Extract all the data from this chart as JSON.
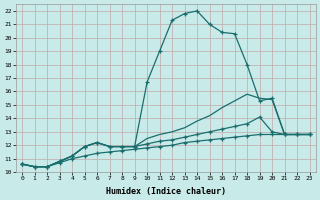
{
  "xlabel": "Humidex (Indice chaleur)",
  "bg_color": "#c8eae8",
  "grid_color": "#c0aaaa",
  "line_color": "#1a6e6e",
  "xlim": [
    -0.5,
    23.5
  ],
  "ylim": [
    10.0,
    22.5
  ],
  "yticks": [
    10,
    11,
    12,
    13,
    14,
    15,
    16,
    17,
    18,
    19,
    20,
    21,
    22
  ],
  "xticks": [
    0,
    1,
    2,
    3,
    4,
    5,
    6,
    7,
    8,
    9,
    10,
    11,
    12,
    13,
    14,
    15,
    16,
    17,
    18,
    19,
    20,
    21,
    22,
    23
  ],
  "series": [
    {
      "x": [
        0,
        1,
        2,
        3,
        4,
        5,
        6,
        7,
        8,
        9,
        10,
        11,
        12,
        13,
        14,
        15,
        16,
        17,
        18,
        19,
        20,
        21,
        22,
        23
      ],
      "y": [
        10.6,
        10.4,
        10.4,
        10.7,
        11.0,
        11.2,
        11.4,
        11.5,
        11.6,
        11.7,
        11.8,
        11.9,
        12.0,
        12.2,
        12.3,
        12.4,
        12.5,
        12.6,
        12.7,
        12.8,
        12.8,
        12.8,
        12.8,
        12.8
      ],
      "marker": true
    },
    {
      "x": [
        0,
        1,
        2,
        3,
        4,
        5,
        6,
        7,
        8,
        9,
        10,
        11,
        12,
        13,
        14,
        15,
        16,
        17,
        18,
        19,
        20,
        21,
        22,
        23
      ],
      "y": [
        10.6,
        10.4,
        10.4,
        10.8,
        11.2,
        11.9,
        12.2,
        11.9,
        11.9,
        11.9,
        12.1,
        12.3,
        12.4,
        12.6,
        12.8,
        13.0,
        13.2,
        13.4,
        13.6,
        14.1,
        13.0,
        12.8,
        12.8,
        12.8
      ],
      "marker": true
    },
    {
      "x": [
        0,
        1,
        2,
        3,
        4,
        5,
        6,
        7,
        8,
        9,
        10,
        11,
        12,
        13,
        14,
        15,
        16,
        17,
        18,
        19,
        20,
        21,
        22,
        23
      ],
      "y": [
        10.6,
        10.4,
        10.4,
        10.8,
        11.2,
        11.9,
        12.2,
        11.9,
        11.9,
        11.9,
        12.5,
        12.8,
        13.0,
        13.3,
        13.8,
        14.2,
        14.8,
        15.3,
        15.8,
        15.5,
        15.4,
        12.8,
        12.8,
        12.8
      ],
      "marker": false
    },
    {
      "x": [
        0,
        1,
        2,
        3,
        4,
        5,
        6,
        7,
        8,
        9,
        10,
        11,
        12,
        13,
        14,
        15,
        16,
        17,
        18,
        19,
        20,
        21,
        22,
        23
      ],
      "y": [
        10.6,
        10.4,
        10.4,
        10.8,
        11.2,
        11.9,
        12.2,
        11.9,
        11.9,
        11.9,
        16.7,
        19.0,
        21.3,
        21.8,
        22.0,
        21.0,
        20.4,
        20.3,
        18.0,
        15.3,
        15.5,
        12.8,
        12.8,
        12.8
      ],
      "marker": true
    }
  ]
}
